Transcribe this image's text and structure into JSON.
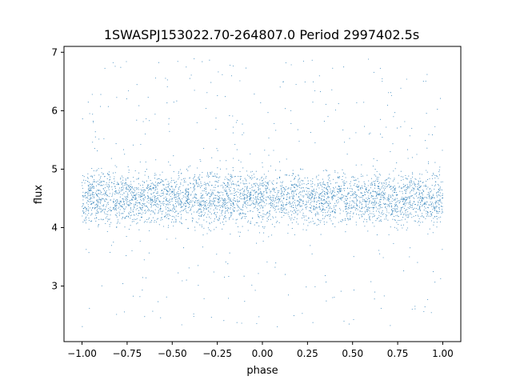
{
  "chart_data": {
    "type": "scatter",
    "title": "1SWASPJ153022.70-264807.0 Period 2997402.5s",
    "xlabel": "phase",
    "ylabel": "flux",
    "xlim": [
      -1.1,
      1.1
    ],
    "ylim": [
      2.05,
      7.1
    ],
    "xticks": [
      -1.0,
      -0.75,
      -0.5,
      -0.25,
      0.0,
      0.25,
      0.5,
      0.75,
      1.0
    ],
    "xtick_labels": [
      "−1.00",
      "−0.75",
      "−0.50",
      "−0.25",
      "0.00",
      "0.25",
      "0.50",
      "0.75",
      "1.00"
    ],
    "yticks": [
      3,
      4,
      5,
      6,
      7
    ],
    "ytick_labels": [
      "3",
      "4",
      "5",
      "6",
      "7"
    ],
    "grid": false,
    "marker_color": "#1f77b4",
    "series": [
      {
        "x_range": [
          -1.0,
          1.0
        ],
        "flux_median": 4.5,
        "flux_core_spread": [
          3.9,
          5.1
        ],
        "flux_outlier_range": [
          2.3,
          6.9
        ]
      }
    ]
  }
}
